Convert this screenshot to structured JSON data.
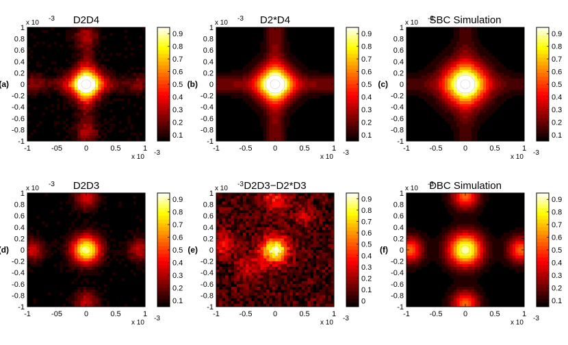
{
  "colors": {
    "low": "#000000",
    "mid": "#e01010",
    "high_yellow": "#f0f020",
    "top": "#ffffff"
  },
  "chart_data": [
    {
      "panel": "(a)",
      "title": "D2D4",
      "type": "heatmap",
      "xlim": [
        -1,
        1
      ],
      "ylim": [
        -1,
        1
      ],
      "axis_multiplier": "x 10",
      "axis_multiplier_exp": "-3",
      "colorbar_range": [
        0.05,
        0.95
      ],
      "yticks": [
        "1",
        "0.8",
        "0.6",
        "0.4",
        "0.2",
        "0",
        "-0.2",
        "-0.4",
        "-0.6",
        "-0.8",
        "-1"
      ],
      "xticks": [
        "-1",
        "-05",
        "0",
        "0.5",
        "1"
      ],
      "cbar_ticks": [
        "0.9",
        "0.8",
        "0.7",
        "0.6",
        "0.5",
        "0.4",
        "0.3",
        "0.2",
        "0.1"
      ],
      "pattern": "double-beam experimental (measured, noisy)",
      "peak_value": 0.95
    },
    {
      "panel": "(b)",
      "title": "D2*D4",
      "type": "heatmap",
      "xlim": [
        -1,
        1
      ],
      "ylim": [
        -1,
        1
      ],
      "axis_multiplier": "x 10",
      "axis_multiplier_exp": "-3",
      "colorbar_range": [
        0.05,
        0.95
      ],
      "yticks": [
        "1",
        "0.8",
        "0.6",
        "0.4",
        "0.2",
        "0",
        "-0.2",
        "-0.4",
        "-0.6",
        "-0.8",
        "-1"
      ],
      "xticks": [
        "-1",
        "-0.5",
        "0",
        "0.5",
        "1"
      ],
      "cbar_ticks": [
        "0.9",
        "0.8",
        "0.7",
        "0.6",
        "0.5",
        "0.4",
        "0.3",
        "0.2",
        "0.1"
      ],
      "pattern": "product of singles (smooth cross)",
      "peak_value": 0.95
    },
    {
      "panel": "(c)",
      "title": "SBC Simulation",
      "type": "heatmap",
      "xlim": [
        -1,
        1
      ],
      "ylim": [
        -1,
        1
      ],
      "axis_multiplier": "x 10",
      "axis_multiplier_exp": "-3",
      "colorbar_range": [
        0.05,
        0.95
      ],
      "yticks": [
        "1",
        "0.8",
        "0.6",
        "0.4",
        "0.2",
        "0",
        "-0.2",
        "-0.4",
        "-0.6",
        "-0.8",
        "-1"
      ],
      "xticks": [
        "-1",
        "-0.5",
        "0",
        "0.5",
        "1"
      ],
      "cbar_ticks": [
        "0.9",
        "0.8",
        "0.7",
        "0.6",
        "0.5",
        "0.4",
        "0.3",
        "0.2",
        "0.1"
      ],
      "pattern": "simulated central gaussian peak",
      "peak_value": 0.95
    },
    {
      "panel": "(d)",
      "title": "D2D3",
      "type": "heatmap",
      "xlim": [
        -1,
        1
      ],
      "ylim": [
        -1,
        1
      ],
      "axis_multiplier": "x 10",
      "axis_multiplier_exp": "-3",
      "colorbar_range": [
        0.05,
        0.95
      ],
      "yticks": [
        "1",
        "0.8",
        "0.6",
        "0.4",
        "0.2",
        "0",
        "-0.2",
        "-0.4",
        "-0.6",
        "-0.8",
        "-1"
      ],
      "xticks": [
        "-1",
        "-05",
        "0",
        "0.5",
        "1"
      ],
      "cbar_ticks": [
        "0.9",
        "0.8",
        "0.7",
        "0.6",
        "0.5",
        "0.4",
        "0.3",
        "0.2",
        "0.1"
      ],
      "pattern": "double-beam experimental with side lobes",
      "peak_value": 0.95
    },
    {
      "panel": "(e)",
      "title": "D2D3−D2*D3",
      "type": "heatmap",
      "xlim": [
        -1,
        1
      ],
      "ylim": [
        -1,
        1
      ],
      "axis_multiplier": "x 10",
      "axis_multiplier_exp": "-3",
      "colorbar_range": [
        -0.05,
        0.95
      ],
      "yticks": [
        "1",
        "0.8",
        "0.6",
        "0.4",
        "0.2",
        "0",
        "-0.2",
        "-0.4",
        "-0.6",
        "-0.8",
        "-1"
      ],
      "xticks": [
        "-1",
        "-0.5",
        "0",
        "0.5",
        "1"
      ],
      "cbar_ticks": [
        "0.9",
        "0.8",
        "0.7",
        "0.6",
        "0.5",
        "0.4",
        "0.3",
        "0.2",
        "0.1",
        "0"
      ],
      "pattern": "difference map (noisy)",
      "peak_value": 0.95
    },
    {
      "panel": "(f)",
      "title": "DBC Simulation",
      "type": "heatmap",
      "xlim": [
        -1,
        1
      ],
      "ylim": [
        -1,
        1
      ],
      "axis_multiplier": "x 10",
      "axis_multiplier_exp": "-3",
      "colorbar_range": [
        0.05,
        0.95
      ],
      "yticks": [
        "1",
        "0.8",
        "0.6",
        "0.4",
        "0.2",
        "0",
        "-0.2",
        "-0.4",
        "-0.6",
        "-0.8",
        "-1"
      ],
      "xticks": [
        "-1",
        "-0.5",
        "0",
        "0.5",
        "1"
      ],
      "cbar_ticks": [
        "0.9",
        "0.8",
        "0.7",
        "0.6",
        "0.5",
        "0.4",
        "0.3",
        "0.2",
        "0.1"
      ],
      "pattern": "simulated central peak with four side lobes",
      "peak_value": 0.95
    }
  ]
}
